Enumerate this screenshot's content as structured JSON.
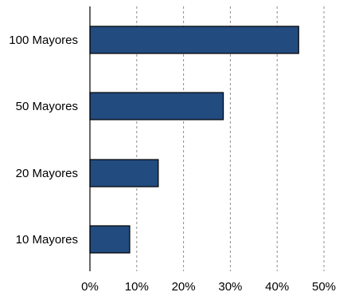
{
  "chart_data": {
    "type": "bar",
    "orientation": "horizontal",
    "categories": [
      "100 Mayores",
      "50 Mayores",
      "20 Mayores",
      "10 Mayores"
    ],
    "values": [
      44.6,
      28.5,
      14.6,
      8.5
    ],
    "unit": "%",
    "xlim": [
      0,
      50
    ],
    "ticks": [
      0,
      10,
      20,
      30,
      40,
      50
    ],
    "tick_labels": [
      "0%",
      "10%",
      "20%",
      "30%",
      "40%",
      "50%"
    ],
    "title": "",
    "xlabel": "",
    "ylabel": "",
    "grid": "vertical dashed",
    "legend": "none",
    "bar_color": "#224b7f"
  }
}
